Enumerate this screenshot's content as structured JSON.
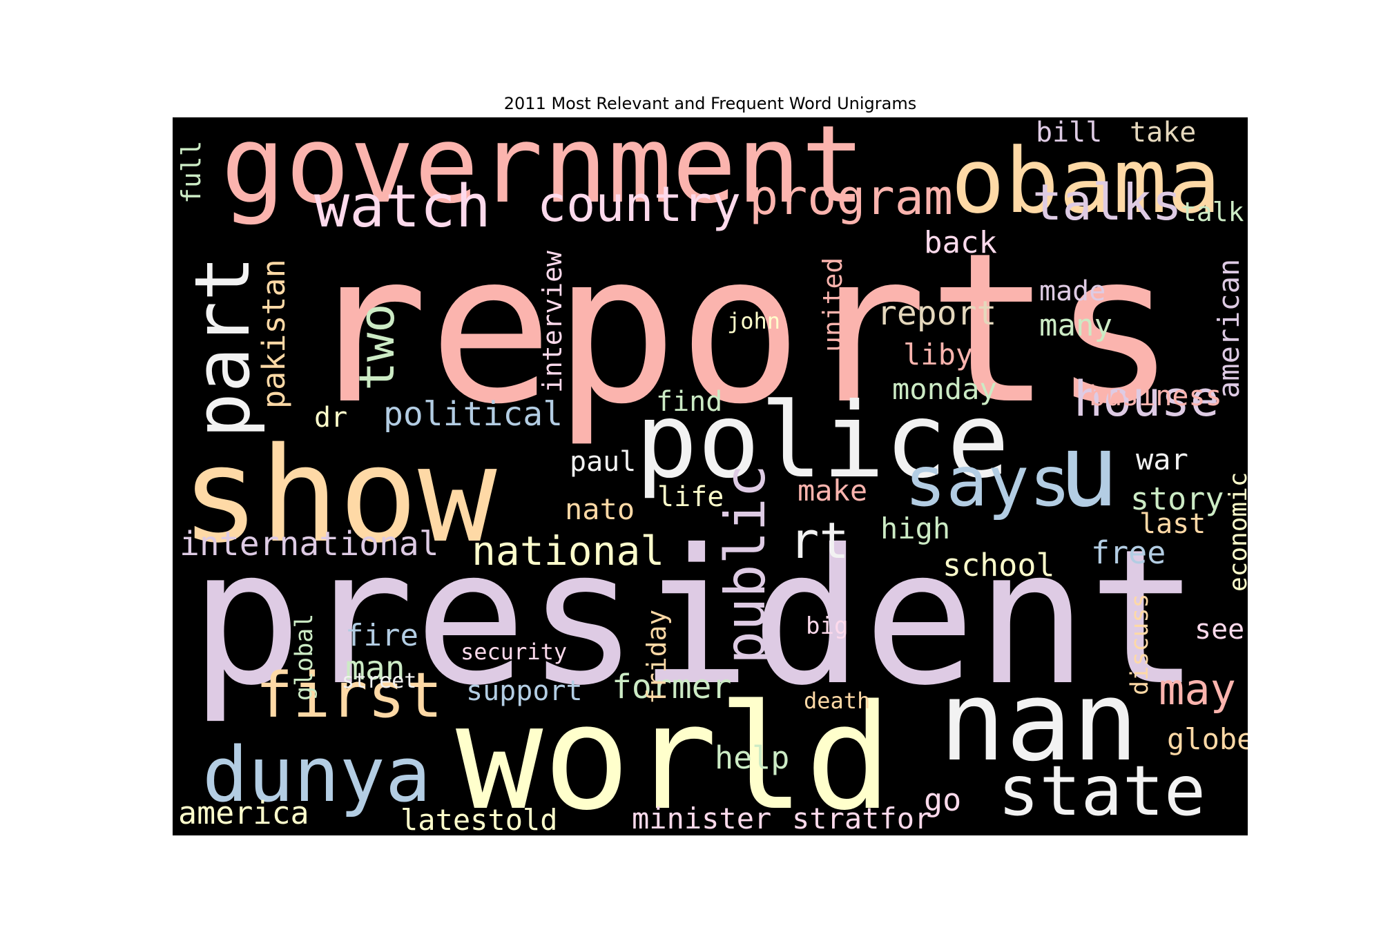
{
  "chart_data": {
    "type": "wordcloud",
    "title": "2011 Most Relevant and Frequent Word Unigrams",
    "background": "#000000",
    "palette": {
      "pink": "#fbb4ae",
      "blue": "#b3cde3",
      "green": "#ccebc5",
      "purple": "#decbe4",
      "orange": "#fed9a6",
      "yellow": "#ffffcc",
      "tan": "#e5d8bd",
      "rose": "#fddaec",
      "white": "#f2f2f2"
    },
    "words": [
      {
        "text": "reports",
        "color": "#fbb4ae",
        "orientation": "horizontal"
      },
      {
        "text": "president",
        "color": "#decbe4",
        "orientation": "horizontal"
      },
      {
        "text": "government",
        "color": "#fbb4ae",
        "orientation": "horizontal"
      },
      {
        "text": "show",
        "color": "#fed9a6",
        "orientation": "horizontal"
      },
      {
        "text": "police",
        "color": "#f2f2f2",
        "orientation": "horizontal"
      },
      {
        "text": "world",
        "color": "#ffffcc",
        "orientation": "horizontal"
      },
      {
        "text": "nan",
        "color": "#f2f2f2",
        "orientation": "horizontal"
      },
      {
        "text": "obama",
        "color": "#fed9a6",
        "orientation": "horizontal"
      },
      {
        "text": "u",
        "color": "#b3cde3",
        "orientation": "horizontal"
      },
      {
        "text": "part",
        "color": "#f2f2f2",
        "orientation": "vertical"
      },
      {
        "text": "dunya",
        "color": "#b3cde3",
        "orientation": "horizontal"
      },
      {
        "text": "state",
        "color": "#f2f2f2",
        "orientation": "horizontal"
      },
      {
        "text": "says",
        "color": "#b3cde3",
        "orientation": "horizontal"
      },
      {
        "text": "public",
        "color": "#decbe4",
        "orientation": "vertical"
      },
      {
        "text": "first",
        "color": "#fed9a6",
        "orientation": "horizontal"
      },
      {
        "text": "watch",
        "color": "#fddaec",
        "orientation": "horizontal"
      },
      {
        "text": "country",
        "color": "#fddaec",
        "orientation": "horizontal"
      },
      {
        "text": "program",
        "color": "#fbb4ae",
        "orientation": "horizontal"
      },
      {
        "text": "talks",
        "color": "#decbe4",
        "orientation": "horizontal"
      },
      {
        "text": "two",
        "color": "#ccebc5",
        "orientation": "vertical"
      },
      {
        "text": "house",
        "color": "#decbe4",
        "orientation": "horizontal"
      },
      {
        "text": "rt",
        "color": "#f2f2f2",
        "orientation": "horizontal"
      },
      {
        "text": "may",
        "color": "#fbb4ae",
        "orientation": "horizontal"
      },
      {
        "text": "national",
        "color": "#ffffcc",
        "orientation": "horizontal"
      },
      {
        "text": "pakistan",
        "color": "#fed9a6",
        "orientation": "vertical"
      },
      {
        "text": "political",
        "color": "#b3cde3",
        "orientation": "horizontal"
      },
      {
        "text": "report",
        "color": "#e5d8bd",
        "orientation": "horizontal"
      },
      {
        "text": "american",
        "color": "#decbe4",
        "orientation": "vertical"
      },
      {
        "text": "international",
        "color": "#decbe4",
        "orientation": "horizontal"
      },
      {
        "text": "former",
        "color": "#ccebc5",
        "orientation": "horizontal"
      },
      {
        "text": "america",
        "color": "#ffffcc",
        "orientation": "horizontal"
      },
      {
        "text": "minister",
        "color": "#fddaec",
        "orientation": "horizontal"
      },
      {
        "text": "stratfor",
        "color": "#fddaec",
        "orientation": "horizontal"
      },
      {
        "text": "latestold",
        "color": "#ffffcc",
        "orientation": "horizontal"
      },
      {
        "text": "school",
        "color": "#ffffcc",
        "orientation": "horizontal"
      },
      {
        "text": "story",
        "color": "#ccebc5",
        "orientation": "horizontal"
      },
      {
        "text": "man",
        "color": "#ccebc5",
        "orientation": "horizontal"
      },
      {
        "text": "interview",
        "color": "#fddaec",
        "orientation": "vertical"
      },
      {
        "text": "monday",
        "color": "#ccebc5",
        "orientation": "horizontal"
      },
      {
        "text": "many",
        "color": "#ccebc5",
        "orientation": "horizontal"
      },
      {
        "text": "united",
        "color": "#fbb4ae",
        "orientation": "vertical"
      },
      {
        "text": "help",
        "color": "#ccebc5",
        "orientation": "horizontal"
      },
      {
        "text": "fire",
        "color": "#b3cde3",
        "orientation": "horizontal"
      },
      {
        "text": "business",
        "color": "#fbb4ae",
        "orientation": "horizontal"
      },
      {
        "text": "free",
        "color": "#b3cde3",
        "orientation": "horizontal"
      },
      {
        "text": "support",
        "color": "#b3cde3",
        "orientation": "horizontal"
      },
      {
        "text": "war",
        "color": "#f2f2f2",
        "orientation": "horizontal"
      },
      {
        "text": "globe",
        "color": "#fed9a6",
        "orientation": "horizontal"
      },
      {
        "text": "back",
        "color": "#fddaec",
        "orientation": "horizontal"
      },
      {
        "text": "libya",
        "color": "#fbb4ae",
        "orientation": "horizontal"
      },
      {
        "text": "made",
        "color": "#decbe4",
        "orientation": "horizontal"
      },
      {
        "text": "nato",
        "color": "#fed9a6",
        "orientation": "horizontal"
      },
      {
        "text": "paul",
        "color": "#f2f2f2",
        "orientation": "horizontal"
      },
      {
        "text": "global",
        "color": "#ccebc5",
        "orientation": "vertical"
      },
      {
        "text": "find",
        "color": "#ccebc5",
        "orientation": "horizontal"
      },
      {
        "text": "economic",
        "color": "#ffffcc",
        "orientation": "vertical"
      },
      {
        "text": "friday",
        "color": "#fed9a6",
        "orientation": "vertical"
      },
      {
        "text": "make",
        "color": "#fbb4ae",
        "orientation": "horizontal"
      },
      {
        "text": "high",
        "color": "#ccebc5",
        "orientation": "horizontal"
      },
      {
        "text": "life",
        "color": "#ffffcc",
        "orientation": "horizontal"
      },
      {
        "text": "discuss",
        "color": "#fed9a6",
        "orientation": "vertical"
      },
      {
        "text": "go",
        "color": "#fddaec",
        "orientation": "horizontal"
      },
      {
        "text": "see",
        "color": "#fddaec",
        "orientation": "horizontal"
      },
      {
        "text": "last",
        "color": "#fed9a6",
        "orientation": "horizontal"
      },
      {
        "text": "bill",
        "color": "#decbe4",
        "orientation": "horizontal"
      },
      {
        "text": "take",
        "color": "#e5d8bd",
        "orientation": "horizontal"
      },
      {
        "text": "full",
        "color": "#ccebc5",
        "orientation": "vertical"
      },
      {
        "text": "dr",
        "color": "#ffffcc",
        "orientation": "horizontal"
      },
      {
        "text": "talk",
        "color": "#ccebc5",
        "orientation": "horizontal"
      },
      {
        "text": "security",
        "color": "#fddaec",
        "orientation": "horizontal"
      },
      {
        "text": "john",
        "color": "#ffffcc",
        "orientation": "horizontal"
      },
      {
        "text": "big",
        "color": "#fddaec",
        "orientation": "horizontal"
      },
      {
        "text": "death",
        "color": "#fed9a6",
        "orientation": "horizontal"
      },
      {
        "text": "street",
        "color": "#f2f2f2",
        "orientation": "horizontal"
      }
    ]
  }
}
